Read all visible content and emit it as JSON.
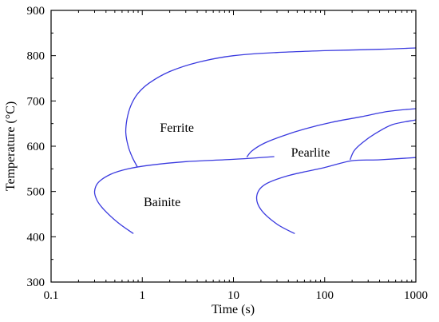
{
  "chart_data": {
    "type": "line",
    "xlabel": "Time (s)",
    "ylabel": "Temperature  (°C)",
    "x_scale": "log",
    "xlim": [
      0.1,
      1000
    ],
    "ylim": [
      300,
      900
    ],
    "x_ticks": [
      {
        "value": 0.1,
        "label": "0.1"
      },
      {
        "value": 1,
        "label": "1"
      },
      {
        "value": 10,
        "label": "10"
      },
      {
        "value": 100,
        "label": "100"
      },
      {
        "value": 1000,
        "label": "1000"
      }
    ],
    "y_ticks": [
      {
        "value": 300,
        "label": "300"
      },
      {
        "value": 400,
        "label": "400"
      },
      {
        "value": 500,
        "label": "500"
      },
      {
        "value": 600,
        "label": "600"
      },
      {
        "value": 700,
        "label": "700"
      },
      {
        "value": 800,
        "label": "800"
      },
      {
        "value": 900,
        "label": "900"
      }
    ],
    "grid": false,
    "line_color": "#3a3adf",
    "series": [
      {
        "points": [
          [
            0.88,
            555
          ],
          [
            0.78,
            575
          ],
          [
            0.7,
            600
          ],
          [
            0.66,
            630
          ],
          [
            0.68,
            660
          ],
          [
            0.75,
            690
          ],
          [
            0.9,
            717
          ],
          [
            1.2,
            740
          ],
          [
            2,
            765
          ],
          [
            4,
            785
          ],
          [
            10,
            800
          ],
          [
            30,
            807
          ],
          [
            100,
            811
          ],
          [
            400,
            814
          ],
          [
            1000,
            817
          ]
        ]
      },
      {
        "points": [
          [
            14,
            576
          ],
          [
            16,
            590
          ],
          [
            22,
            607
          ],
          [
            35,
            623
          ],
          [
            60,
            638
          ],
          [
            120,
            653
          ],
          [
            250,
            665
          ],
          [
            500,
            677
          ],
          [
            1000,
            683
          ]
        ]
      },
      {
        "points": [
          [
            190,
            570
          ],
          [
            210,
            590
          ],
          [
            260,
            608
          ],
          [
            360,
            628
          ],
          [
            560,
            648
          ],
          [
            1000,
            658
          ]
        ]
      },
      {
        "points": [
          [
            0.8,
            407
          ],
          [
            0.55,
            430
          ],
          [
            0.38,
            460
          ],
          [
            0.32,
            480
          ],
          [
            0.3,
            500
          ],
          [
            0.33,
            520
          ],
          [
            0.45,
            538
          ],
          [
            0.7,
            550
          ],
          [
            1.2,
            558
          ],
          [
            3,
            566
          ],
          [
            10,
            571
          ],
          [
            28,
            577
          ]
        ]
      },
      {
        "points": [
          [
            47,
            407
          ],
          [
            30,
            428
          ],
          [
            20,
            460
          ],
          [
            18,
            490
          ],
          [
            22,
            515
          ],
          [
            40,
            535
          ],
          [
            100,
            553
          ],
          [
            200,
            568
          ],
          [
            400,
            570
          ],
          [
            1000,
            575
          ]
        ]
      }
    ],
    "annotations": [
      {
        "text": "Ferrite",
        "x": 2.4,
        "y": 632
      },
      {
        "text": "Pearlite",
        "x": 70,
        "y": 577
      },
      {
        "text": "Bainite",
        "x": 1.65,
        "y": 468
      }
    ]
  }
}
